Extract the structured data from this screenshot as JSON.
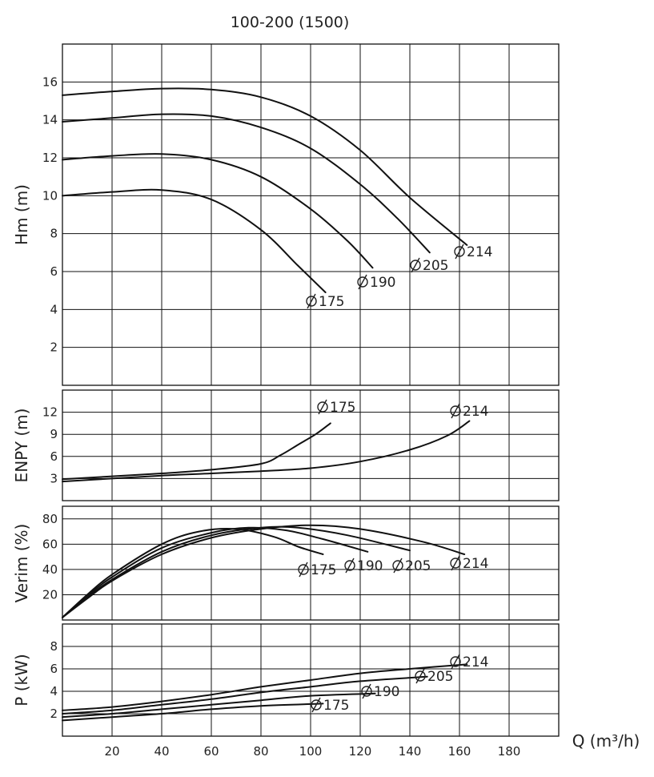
{
  "chart_data": {
    "title": "100-200 (1500)",
    "xlabel": "Q (m³/h)",
    "xlim": [
      0,
      200
    ],
    "xticks": [
      "20",
      "40",
      "60",
      "80",
      "100",
      "120",
      "140",
      "160",
      "180"
    ],
    "grid": true,
    "panels": [
      {
        "id": "head",
        "type": "line",
        "ylabel": "Hm (m)",
        "ylim": [
          0,
          18
        ],
        "yticks": [
          "2",
          "4",
          "6",
          "8",
          "10",
          "12",
          "14",
          "16"
        ],
        "series": [
          {
            "name": "Ø 214",
            "label_text": "214",
            "x": [
              0,
              20,
              40,
              60,
              80,
              100,
              120,
              140,
              163
            ],
            "y": [
              15.3,
              15.5,
              15.65,
              15.6,
              15.2,
              14.2,
              12.4,
              9.9,
              7.4
            ]
          },
          {
            "name": "Ø 205",
            "label_text": "205",
            "x": [
              0,
              20,
              40,
              60,
              80,
              100,
              120,
              135,
              148
            ],
            "y": [
              13.9,
              14.1,
              14.3,
              14.2,
              13.6,
              12.5,
              10.6,
              8.8,
              7.0
            ]
          },
          {
            "name": "Ø 190",
            "label_text": "190",
            "x": [
              0,
              20,
              40,
              60,
              80,
              100,
              115,
              125
            ],
            "y": [
              11.9,
              12.1,
              12.2,
              11.9,
              11.0,
              9.3,
              7.6,
              6.2
            ]
          },
          {
            "name": "Ø 175",
            "label_text": "175",
            "x": [
              0,
              20,
              40,
              60,
              80,
              95,
              106
            ],
            "y": [
              10.0,
              10.2,
              10.3,
              9.8,
              8.2,
              6.3,
              4.9
            ]
          }
        ]
      },
      {
        "id": "npsh",
        "type": "line",
        "ylabel": "ENPY (m)",
        "ylim": [
          0,
          15
        ],
        "yticks": [
          "3",
          "6",
          "9",
          "12"
        ],
        "series": [
          {
            "name": "Ø 175",
            "label_text": "175",
            "x": [
              0,
              20,
              40,
              60,
              80,
              88,
              95,
              102,
              108
            ],
            "y": [
              2.9,
              3.3,
              3.7,
              4.2,
              5.0,
              6.2,
              7.6,
              9.0,
              10.5
            ]
          },
          {
            "name": "Ø 214",
            "label_text": "214",
            "x": [
              0,
              20,
              40,
              60,
              80,
              100,
              120,
              140,
              155,
              164
            ],
            "y": [
              2.6,
              3.0,
              3.4,
              3.7,
              4.0,
              4.4,
              5.3,
              6.9,
              8.8,
              10.8
            ]
          }
        ]
      },
      {
        "id": "efficiency",
        "type": "line",
        "ylabel": "Verim (%)",
        "ylim": [
          0,
          90
        ],
        "yticks": [
          "20",
          "40",
          "60",
          "80"
        ],
        "series": [
          {
            "name": "Ø 175",
            "label_text": "175",
            "x": [
              0,
              10,
              20,
              40,
              55,
              70,
              85,
              95,
              105
            ],
            "y": [
              2,
              20,
              36,
              60,
              70,
              72,
              66,
              58,
              52
            ]
          },
          {
            "name": "Ø 190",
            "label_text": "190",
            "x": [
              0,
              10,
              20,
              40,
              60,
              75,
              90,
              105,
              123
            ],
            "y": [
              2,
              19,
              34,
              57,
              69,
              73,
              71,
              64,
              54
            ]
          },
          {
            "name": "Ø 205",
            "label_text": "205",
            "x": [
              0,
              10,
              20,
              40,
              60,
              80,
              95,
              115,
              140
            ],
            "y": [
              2,
              18,
              32,
              54,
              67,
              73,
              73,
              67,
              55
            ]
          },
          {
            "name": "Ø 214",
            "label_text": "214",
            "x": [
              0,
              10,
              20,
              40,
              60,
              80,
              100,
              120,
              145,
              162
            ],
            "y": [
              2,
              17,
              31,
              52,
              65,
              72,
              75,
              72,
              62,
              52
            ]
          }
        ]
      },
      {
        "id": "power",
        "type": "line",
        "ylabel": "P (kW)",
        "ylim": [
          0,
          10
        ],
        "yticks": [
          "2",
          "4",
          "6",
          "8"
        ],
        "series": [
          {
            "name": "Ø 214",
            "label_text": "214",
            "x": [
              0,
              20,
              40,
              60,
              80,
              100,
              120,
              140,
              163
            ],
            "y": [
              2.3,
              2.6,
              3.1,
              3.7,
              4.4,
              5.0,
              5.6,
              6.0,
              6.4
            ]
          },
          {
            "name": "Ø 205",
            "label_text": "205",
            "x": [
              0,
              20,
              40,
              60,
              80,
              100,
              120,
              147
            ],
            "y": [
              2.0,
              2.3,
              2.8,
              3.3,
              3.9,
              4.4,
              4.9,
              5.3
            ]
          },
          {
            "name": "Ø 190",
            "label_text": "190",
            "x": [
              0,
              20,
              40,
              60,
              80,
              100,
              126
            ],
            "y": [
              1.7,
              2.0,
              2.4,
              2.8,
              3.2,
              3.6,
              3.8
            ]
          },
          {
            "name": "Ø 175",
            "label_text": "175",
            "x": [
              0,
              20,
              40,
              60,
              80,
              105
            ],
            "y": [
              1.4,
              1.7,
              2.0,
              2.4,
              2.7,
              2.9
            ]
          }
        ]
      }
    ]
  }
}
